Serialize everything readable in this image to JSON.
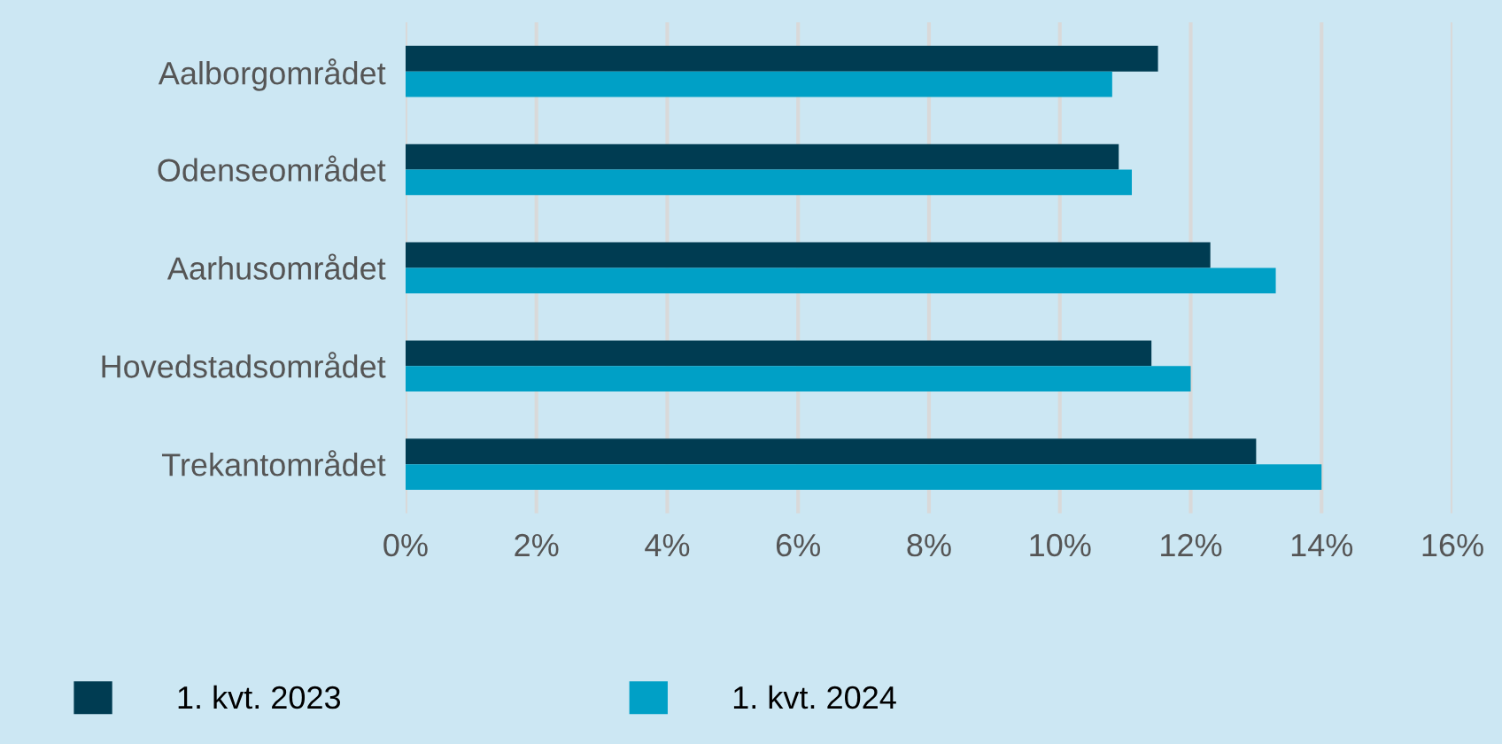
{
  "chart_data": {
    "type": "bar",
    "orientation": "horizontal",
    "categories": [
      "Aalborgområdet",
      "Odenseområdet",
      "Aarhusområdet",
      "Hovedstadsområdet",
      "Trekantområdet"
    ],
    "series": [
      {
        "name": "1. kvt. 2023",
        "color": "#003c52",
        "values": [
          11.5,
          10.9,
          12.3,
          11.4,
          13.0
        ]
      },
      {
        "name": "1. kvt. 2024",
        "color": "#00a0c6",
        "values": [
          10.8,
          11.1,
          13.3,
          12.0,
          14.0
        ]
      }
    ],
    "xlim": [
      0,
      16
    ],
    "xticks": [
      {
        "value": 0,
        "label": "0%"
      },
      {
        "value": 2,
        "label": "2%"
      },
      {
        "value": 4,
        "label": "4%"
      },
      {
        "value": 6,
        "label": "6%"
      },
      {
        "value": 8,
        "label": "8%"
      },
      {
        "value": 10,
        "label": "10%"
      },
      {
        "value": 12,
        "label": "12%"
      },
      {
        "value": 14,
        "label": "14%"
      },
      {
        "value": 16,
        "label": "16%"
      }
    ],
    "grid": "x",
    "legend": "bottom left"
  }
}
